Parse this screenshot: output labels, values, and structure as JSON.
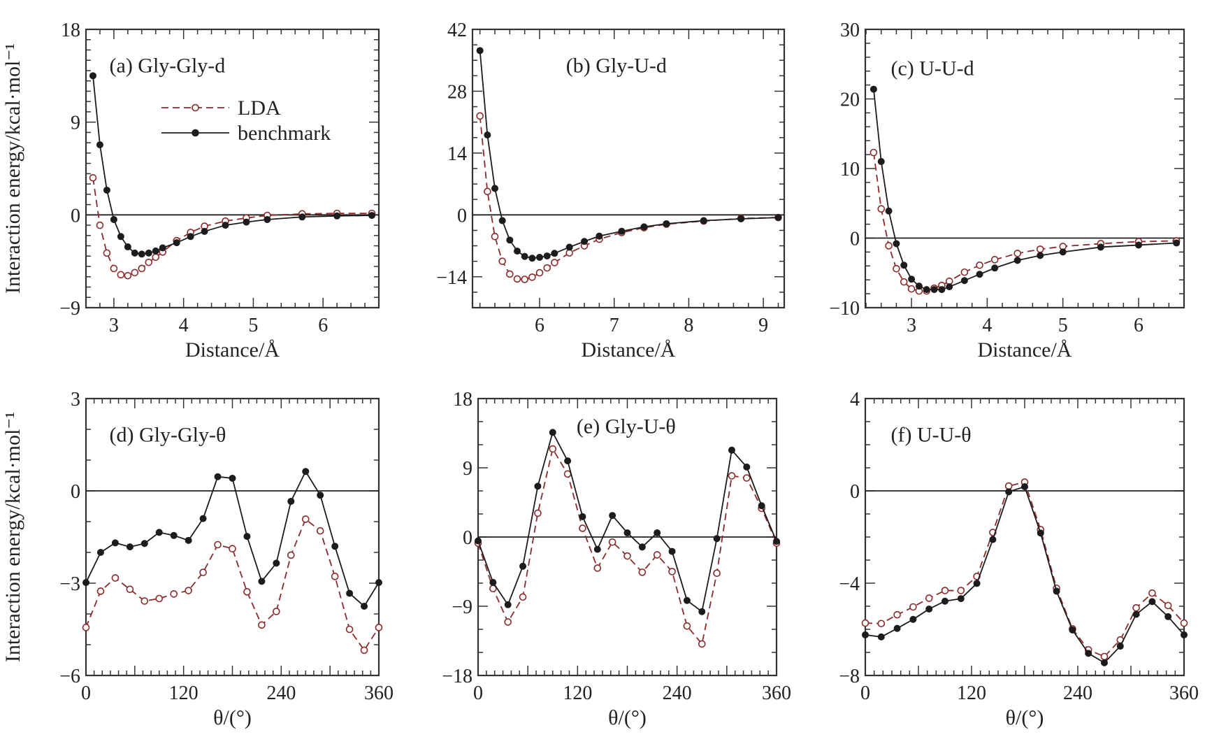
{
  "colors": {
    "LDA": "#8b2a2a",
    "benchmark": "#1c1c1c",
    "axis": "#333333"
  },
  "legend": {
    "placement": "upper-right of panel (a)",
    "entries": [
      {
        "name": "LDA",
        "marker": "open-circle",
        "line": "dashed"
      },
      {
        "name": "benchmark",
        "marker": "filled-circle",
        "line": "solid"
      }
    ]
  },
  "chart_data": [
    {
      "type": "line",
      "title": "(a)  Gly-Gly-d",
      "xlabel": "Distance/Å",
      "ylabel": "Interaction energy/kcal·mol⁻¹",
      "xlim": [
        2.6,
        6.8
      ],
      "ylim": [
        -9,
        18
      ],
      "xticks": [
        3,
        4,
        5,
        6
      ],
      "yticks": [
        18,
        9,
        0,
        -9
      ],
      "reference_line": 0,
      "legend": true,
      "x": [
        2.7,
        2.8,
        2.9,
        3.0,
        3.1,
        3.2,
        3.3,
        3.4,
        3.5,
        3.6,
        3.7,
        3.9,
        4.1,
        4.3,
        4.6,
        4.9,
        5.2,
        5.7,
        6.2,
        6.7
      ],
      "series": [
        {
          "name": "LDA",
          "values": [
            3.6,
            -1.0,
            -3.7,
            -5.2,
            -5.8,
            -5.9,
            -5.6,
            -5.2,
            -4.6,
            -4.1,
            -3.6,
            -2.5,
            -1.7,
            -1.1,
            -0.6,
            -0.3,
            -0.05,
            0.1,
            0.15,
            0.15
          ]
        },
        {
          "name": "benchmark",
          "values": [
            13.5,
            6.8,
            2.4,
            -0.45,
            -2.1,
            -3.1,
            -3.7,
            -3.8,
            -3.7,
            -3.5,
            -3.2,
            -2.7,
            -2.1,
            -1.6,
            -1.0,
            -0.7,
            -0.45,
            -0.2,
            -0.1,
            -0.05
          ]
        }
      ]
    },
    {
      "type": "line",
      "title": "(b)  Gly-U-d",
      "xlabel": "Distance/Å",
      "ylabel": "",
      "xlim": [
        5.1,
        9.28
      ],
      "ylim": [
        -21,
        42
      ],
      "xticks": [
        6,
        7,
        8,
        9
      ],
      "yticks": [
        42,
        28,
        14,
        0,
        -14
      ],
      "reference_line": 0,
      "legend": false,
      "x": [
        5.2,
        5.3,
        5.4,
        5.5,
        5.6,
        5.7,
        5.8,
        5.9,
        6.0,
        6.1,
        6.2,
        6.4,
        6.6,
        6.8,
        7.1,
        7.4,
        7.7,
        8.2,
        8.7,
        9.2
      ],
      "series": [
        {
          "name": "LDA",
          "values": [
            22.4,
            5.3,
            -4.9,
            -10.5,
            -13.4,
            -14.5,
            -14.6,
            -14.1,
            -13.1,
            -12.0,
            -10.8,
            -8.6,
            -7.0,
            -5.5,
            -4.0,
            -2.9,
            -2.1,
            -1.4,
            -0.8,
            -0.6
          ]
        },
        {
          "name": "benchmark",
          "values": [
            37.2,
            18.1,
            6.0,
            -1.3,
            -5.7,
            -8.2,
            -9.4,
            -9.8,
            -9.6,
            -9.3,
            -8.7,
            -7.3,
            -6.0,
            -4.8,
            -3.7,
            -2.7,
            -2.0,
            -1.3,
            -0.9,
            -0.6
          ]
        }
      ]
    },
    {
      "type": "line",
      "title": "(c)  U-U-d",
      "xlabel": "Distance/Å",
      "ylabel": "",
      "xlim": [
        2.39,
        6.6
      ],
      "ylim": [
        -10,
        30
      ],
      "xticks": [
        3,
        4,
        5,
        6
      ],
      "yticks": [
        30,
        20,
        10,
        0,
        -10
      ],
      "reference_line": 0,
      "legend": false,
      "x": [
        2.5,
        2.6,
        2.7,
        2.8,
        2.9,
        3.0,
        3.1,
        3.2,
        3.3,
        3.4,
        3.5,
        3.7,
        3.9,
        4.1,
        4.4,
        4.7,
        5.0,
        5.5,
        6.0,
        6.5
      ],
      "series": [
        {
          "name": "LDA",
          "values": [
            12.3,
            4.2,
            -1.1,
            -4.4,
            -6.3,
            -7.3,
            -7.6,
            -7.6,
            -7.2,
            -6.8,
            -6.2,
            -4.9,
            -3.9,
            -3.1,
            -2.2,
            -1.6,
            -1.2,
            -0.8,
            -0.5,
            -0.4
          ]
        },
        {
          "name": "benchmark",
          "values": [
            21.4,
            11.0,
            3.9,
            -0.8,
            -3.9,
            -5.9,
            -6.9,
            -7.4,
            -7.4,
            -7.4,
            -7.0,
            -6.1,
            -5.2,
            -4.3,
            -3.2,
            -2.5,
            -2.0,
            -1.3,
            -1.0,
            -0.7
          ]
        }
      ]
    },
    {
      "type": "line",
      "title": "(d)  Gly-Gly-θ",
      "xlabel": "θ/(°)",
      "ylabel": "Interaction energy/kcal·mol⁻¹",
      "xlim": [
        0,
        360
      ],
      "ylim": [
        -6,
        3
      ],
      "xticks": [
        0,
        120,
        240,
        360
      ],
      "yticks": [
        3,
        0,
        -3,
        -6
      ],
      "reference_line": 0,
      "legend": false,
      "x": [
        0,
        18,
        36,
        54,
        72,
        90,
        108,
        126,
        144,
        162,
        180,
        198,
        216,
        234,
        252,
        270,
        288,
        306,
        324,
        342,
        360
      ],
      "series": [
        {
          "name": "LDA",
          "values": [
            -4.44,
            -3.26,
            -2.83,
            -3.2,
            -3.58,
            -3.5,
            -3.35,
            -3.24,
            -2.65,
            -1.75,
            -1.88,
            -3.28,
            -4.36,
            -3.92,
            -2.09,
            -0.92,
            -1.3,
            -2.78,
            -4.5,
            -5.18,
            -4.44
          ]
        },
        {
          "name": "benchmark",
          "values": [
            -2.98,
            -2.0,
            -1.69,
            -1.82,
            -1.71,
            -1.35,
            -1.45,
            -1.61,
            -0.9,
            0.46,
            0.41,
            -1.48,
            -2.94,
            -2.35,
            -0.34,
            0.63,
            -0.14,
            -1.8,
            -3.33,
            -3.75,
            -2.98
          ]
        }
      ]
    },
    {
      "type": "line",
      "title": "(e)  Gly-U-θ",
      "xlabel": "θ/(°)",
      "ylabel": "",
      "xlim": [
        0,
        360
      ],
      "ylim": [
        -18,
        18
      ],
      "xticks": [
        0,
        120,
        240,
        360
      ],
      "yticks": [
        18,
        9,
        0,
        -9,
        -18
      ],
      "reference_line": 0,
      "legend": false,
      "x": [
        0,
        18,
        36,
        54,
        72,
        90,
        108,
        126,
        144,
        162,
        180,
        198,
        216,
        234,
        252,
        270,
        288,
        306,
        324,
        342,
        360
      ],
      "series": [
        {
          "name": "LDA",
          "values": [
            -0.8,
            -6.7,
            -11.05,
            -7.8,
            3.1,
            11.45,
            8.2,
            1.14,
            -4.04,
            -0.66,
            -2.47,
            -4.58,
            -2.32,
            -4.49,
            -11.57,
            -13.9,
            -4.7,
            7.95,
            7.68,
            3.73,
            -0.8
          ]
        },
        {
          "name": "benchmark",
          "values": [
            -0.5,
            -5.9,
            -8.8,
            -3.8,
            6.6,
            13.6,
            9.9,
            2.65,
            -1.6,
            2.8,
            0.54,
            -1.3,
            0.54,
            -1.87,
            -8.25,
            -9.7,
            -0.2,
            11.3,
            9.1,
            4.07,
            -0.57
          ]
        }
      ]
    },
    {
      "type": "line",
      "title": "(f)  U-U-θ",
      "xlabel": "θ/(°)",
      "ylabel": "",
      "xlim": [
        0,
        360
      ],
      "ylim": [
        -8,
        4
      ],
      "xticks": [
        0,
        120,
        240,
        360
      ],
      "yticks": [
        4,
        0,
        -4,
        -8
      ],
      "reference_line": 0,
      "legend": false,
      "x": [
        0,
        18,
        36,
        54,
        72,
        90,
        108,
        126,
        144,
        162,
        180,
        198,
        216,
        234,
        252,
        270,
        288,
        306,
        324,
        342,
        360
      ],
      "series": [
        {
          "name": "LDA",
          "values": [
            -5.73,
            -5.75,
            -5.37,
            -5.03,
            -4.65,
            -4.32,
            -4.32,
            -3.71,
            -1.8,
            0.21,
            0.38,
            -1.68,
            -4.22,
            -5.98,
            -6.89,
            -7.18,
            -6.46,
            -5.07,
            -4.43,
            -4.97,
            -5.73
          ]
        },
        {
          "name": "benchmark",
          "values": [
            -6.24,
            -6.33,
            -5.96,
            -5.57,
            -5.12,
            -4.78,
            -4.67,
            -4.01,
            -2.11,
            -0.04,
            0.18,
            -1.83,
            -4.35,
            -6.03,
            -7.04,
            -7.45,
            -6.73,
            -5.35,
            -4.8,
            -5.45,
            -6.24
          ]
        }
      ]
    }
  ]
}
